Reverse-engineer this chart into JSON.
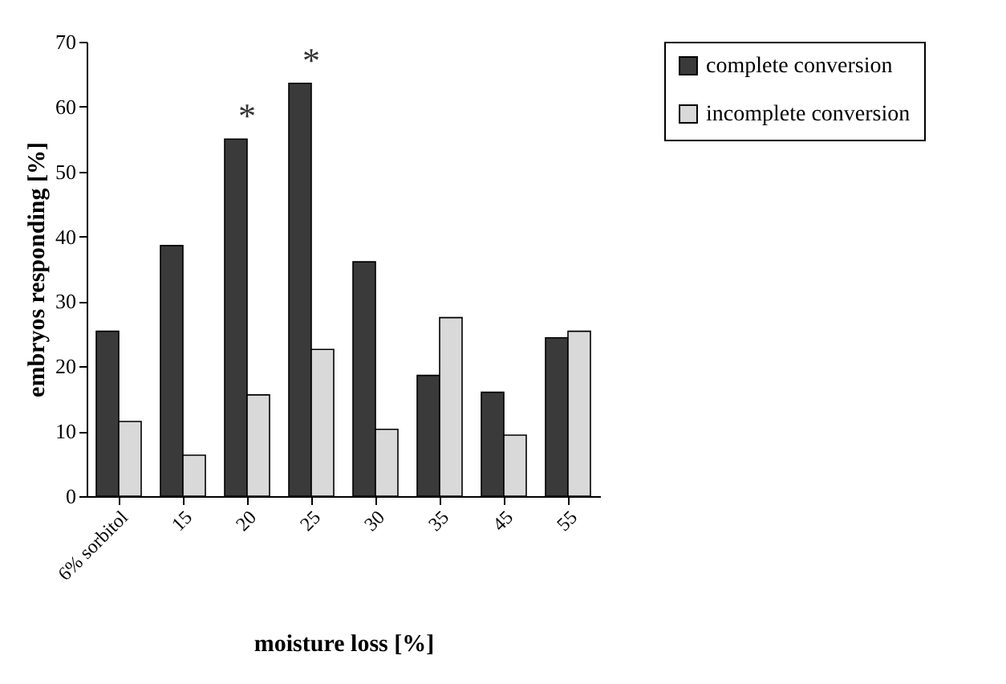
{
  "chart_data": {
    "type": "bar",
    "xlabel": "moisture loss [%]",
    "ylabel": "embryos responding [%]",
    "categories": [
      "6% sorbitol",
      "15",
      "20",
      "25",
      "30",
      "35",
      "45",
      "55"
    ],
    "series": [
      {
        "name": "complete conversion",
        "color": "#3a3a3a",
        "values": [
          25.4,
          38.6,
          55,
          63.6,
          36.1,
          18.6,
          16,
          24.4
        ]
      },
      {
        "name": "incomplete conversion",
        "color": "#d9d9d9",
        "values": [
          11.5,
          6.3,
          15.6,
          22.6,
          10.3,
          27.5,
          9.4,
          25.4
        ]
      }
    ],
    "ylim": [
      0,
      70
    ],
    "yticks": [
      0,
      10,
      20,
      30,
      40,
      50,
      60,
      70
    ],
    "grid": false,
    "legend": "right",
    "annotations": [
      {
        "text": "*",
        "x": "20",
        "y": 55
      },
      {
        "text": "*",
        "x": "25",
        "y": 63.6
      }
    ]
  }
}
